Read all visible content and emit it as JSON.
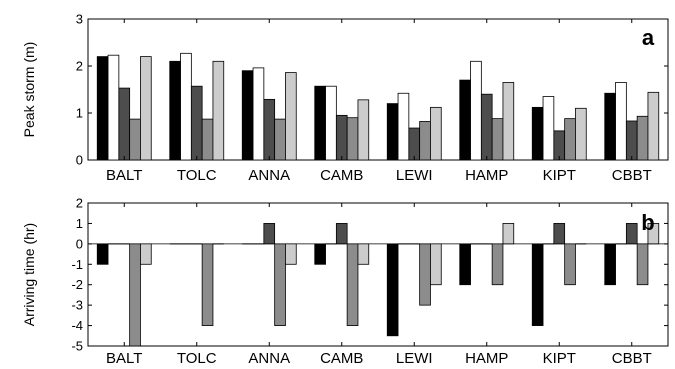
{
  "chart_data": [
    {
      "type": "bar",
      "panel_label": "a",
      "ylabel": "Peak storm (m)",
      "ylim": [
        0,
        3
      ],
      "yticks": [
        0,
        1,
        2,
        3
      ],
      "categories": [
        "BALT",
        "TOLC",
        "ANNA",
        "CAMB",
        "LEWI",
        "HAMP",
        "KIPT",
        "CBBT"
      ],
      "series": [
        {
          "color": "#000000",
          "values": [
            2.2,
            2.1,
            1.9,
            1.57,
            1.2,
            1.7,
            1.12,
            1.42
          ]
        },
        {
          "color": "#ffffff",
          "values": [
            2.23,
            2.27,
            1.96,
            1.57,
            1.42,
            2.1,
            1.35,
            1.65
          ]
        },
        {
          "color": "#4d4d4d",
          "values": [
            1.53,
            1.57,
            1.29,
            0.95,
            0.68,
            1.4,
            0.62,
            0.83
          ]
        },
        {
          "color": "#8c8c8c",
          "values": [
            0.87,
            0.87,
            0.87,
            0.9,
            0.82,
            0.88,
            0.88,
            0.93
          ]
        },
        {
          "color": "#cccccc",
          "values": [
            2.2,
            2.1,
            1.86,
            1.28,
            1.12,
            1.65,
            1.1,
            1.44
          ]
        }
      ]
    },
    {
      "type": "bar",
      "panel_label": "b",
      "ylabel": "Arriving time (hr)",
      "ylim": [
        -5,
        2
      ],
      "yticks": [
        -5,
        -4,
        -3,
        -2,
        -1,
        0,
        1,
        2
      ],
      "categories": [
        "BALT",
        "TOLC",
        "ANNA",
        "CAMB",
        "LEWI",
        "HAMP",
        "KIPT",
        "CBBT"
      ],
      "series": [
        {
          "color": "#000000",
          "values": [
            -1,
            0,
            0,
            -1,
            -4.5,
            -2,
            -4,
            -2
          ]
        },
        {
          "color": "#ffffff",
          "values": [
            0,
            0,
            0,
            0,
            0,
            0,
            0,
            0
          ]
        },
        {
          "color": "#4d4d4d",
          "values": [
            0,
            0,
            1,
            1,
            0,
            0,
            1,
            1
          ]
        },
        {
          "color": "#8c8c8c",
          "values": [
            -5,
            -4,
            -4,
            -4,
            -3,
            -2,
            -2,
            -2
          ]
        },
        {
          "color": "#cccccc",
          "values": [
            -1,
            0,
            -1,
            -1,
            -2,
            1,
            0,
            1
          ]
        }
      ]
    }
  ]
}
